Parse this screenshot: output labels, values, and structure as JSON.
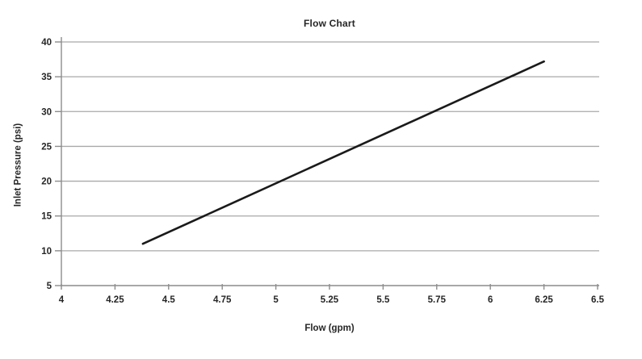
{
  "chart_data": {
    "type": "line",
    "title": "Flow Chart",
    "xlabel": "Flow (gpm)",
    "ylabel": "Inlet Pressure (psi)",
    "series": [
      {
        "x": [
          4.38,
          6.25
        ],
        "y": [
          11,
          37.2
        ]
      }
    ],
    "xlim": [
      4,
      6.5
    ],
    "ylim": [
      5,
      40
    ],
    "x_ticks": [
      "4",
      "4.25",
      "4.5",
      "4.75",
      "5",
      "5.25",
      "5.5",
      "5.75",
      "6",
      "6.25",
      "6.5"
    ],
    "y_ticks": [
      "5",
      "10",
      "15",
      "20",
      "25",
      "30",
      "35",
      "40"
    ],
    "grid": "horizontal-only",
    "legend": "none",
    "colors": {
      "line": "#1a1a1a",
      "gridline": "#a9a9a9",
      "axis": "#8c8c8c",
      "text": "#262626",
      "background": "#ffffff"
    }
  }
}
